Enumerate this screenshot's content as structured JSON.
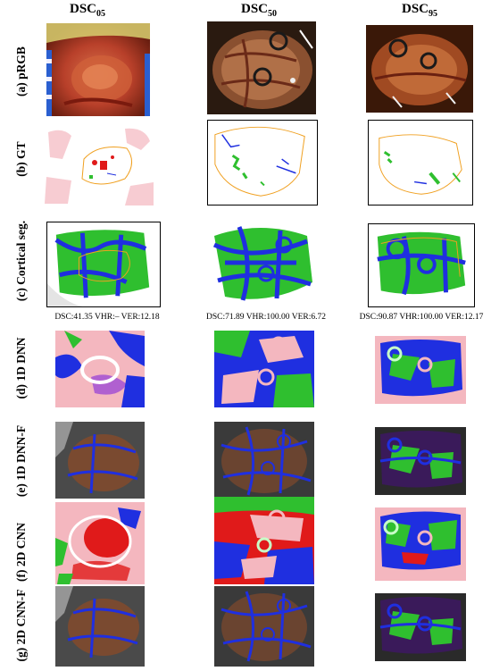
{
  "columns": [
    {
      "main": "DSC",
      "sub": "05"
    },
    {
      "main": "DSC",
      "sub": "50"
    },
    {
      "main": "DSC",
      "sub": "95"
    }
  ],
  "rows": [
    "(a) pRGB",
    "(b) GT",
    "(c) Cortical seg.",
    "(d) 1D DNN",
    "(e) 1D DNN-F",
    "(f) 2D CNN",
    "(g) 2D CNN-F"
  ],
  "metrics": [
    "DSC:41.35 VHR:– VER:12.18",
    "DSC:71.89 VHR:100.00 VER:6.72",
    "DSC:90.87 VHR:100.00 VER:12.17"
  ],
  "colors": {
    "vessel_blue": "#1f2fe0",
    "cortex_green": "#2fbf2f",
    "tumor_red": "#e01a1a",
    "pink": "#f4b7bf",
    "outline_orange": "#f0a020",
    "tissue_dark": "#5a2a18"
  }
}
